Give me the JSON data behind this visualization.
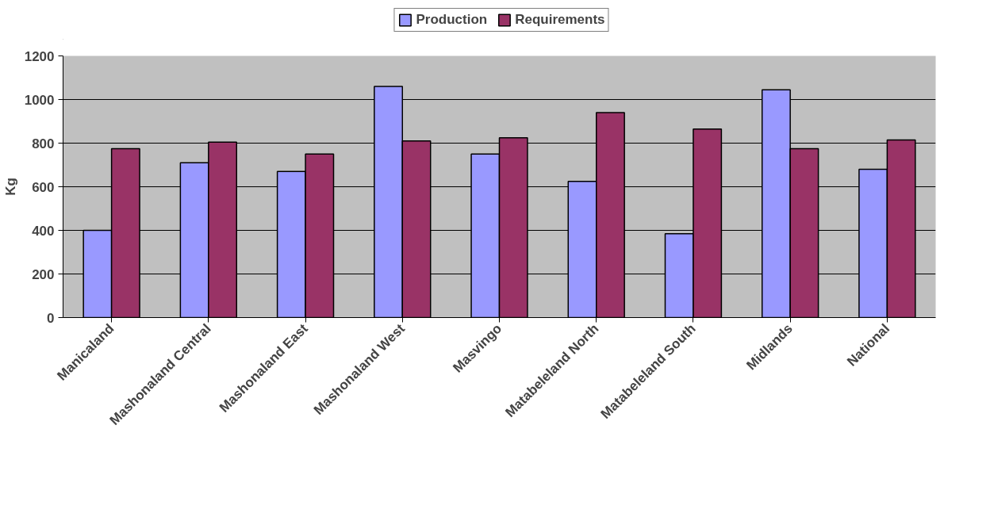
{
  "chart_data": {
    "type": "bar",
    "ylabel": "Kg",
    "categories": [
      "Manicaland",
      "Mashonaland Central",
      "Mashonaland East",
      "Mashonaland West",
      "Masvingo",
      "Matabeleland North",
      "Matabeleland South",
      "Midlands",
      "National"
    ],
    "series": [
      {
        "name": "Production",
        "color": "#9999ff",
        "values": [
          400,
          710,
          670,
          1060,
          750,
          625,
          385,
          1045,
          680
        ]
      },
      {
        "name": "Requirements",
        "color": "#993366",
        "values": [
          775,
          805,
          750,
          810,
          825,
          940,
          865,
          775,
          815
        ]
      }
    ],
    "ylim": [
      0,
      1200
    ],
    "yticks": [
      0,
      200,
      400,
      600,
      800,
      1000,
      1200
    ],
    "grid": "y",
    "legend": "top"
  }
}
